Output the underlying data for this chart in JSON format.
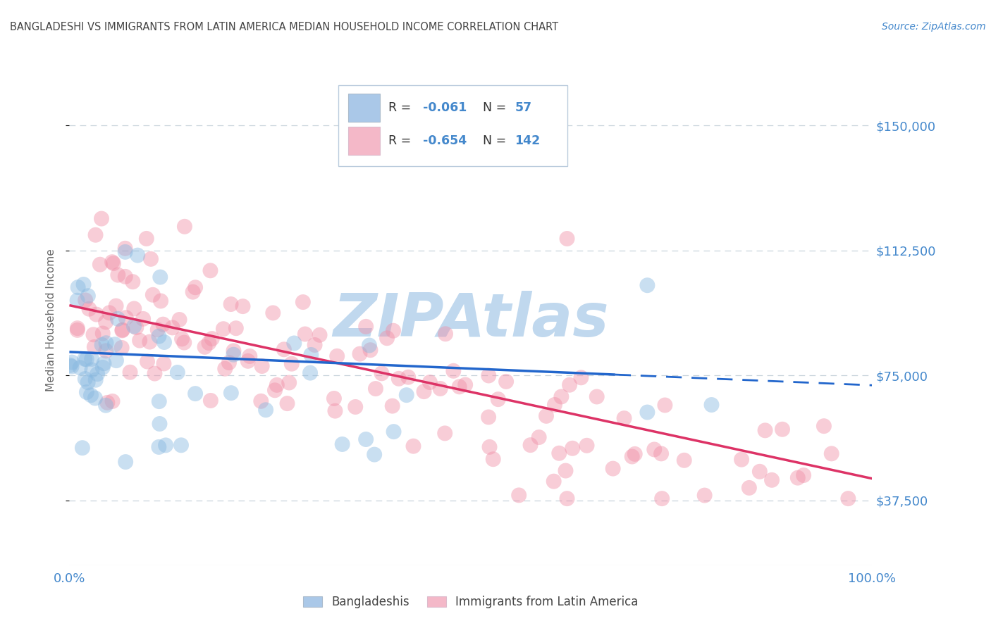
{
  "title": "BANGLADESHI VS IMMIGRANTS FROM LATIN AMERICA MEDIAN HOUSEHOLD INCOME CORRELATION CHART",
  "source": "Source: ZipAtlas.com",
  "ylabel": "Median Household Income",
  "xlim": [
    0,
    1.0
  ],
  "ylim": [
    18000,
    165000
  ],
  "yticks": [
    37500,
    75000,
    112500,
    150000
  ],
  "ytick_labels": [
    "$37,500",
    "$75,000",
    "$112,500",
    "$150,000"
  ],
  "xtick_labels": [
    "0.0%",
    "100.0%"
  ],
  "blue_R": -0.061,
  "blue_N": 57,
  "pink_R": -0.654,
  "pink_N": 142,
  "watermark": "ZIPAtlas",
  "blue_scatter_color": "#88b8e0",
  "pink_scatter_color": "#f090a8",
  "blue_line_color": "#2266cc",
  "pink_line_color": "#dd3366",
  "blue_legend_color": "#aac8e8",
  "pink_legend_color": "#f4b8c8",
  "background_color": "#ffffff",
  "grid_color": "#c8d4dc",
  "title_color": "#444444",
  "axis_label_color": "#666666",
  "tick_color": "#4488cc",
  "source_color": "#4488cc",
  "watermark_color": "#c0d8ee",
  "legend_text_color": "#4488cc",
  "legend_label_color": "#444444"
}
